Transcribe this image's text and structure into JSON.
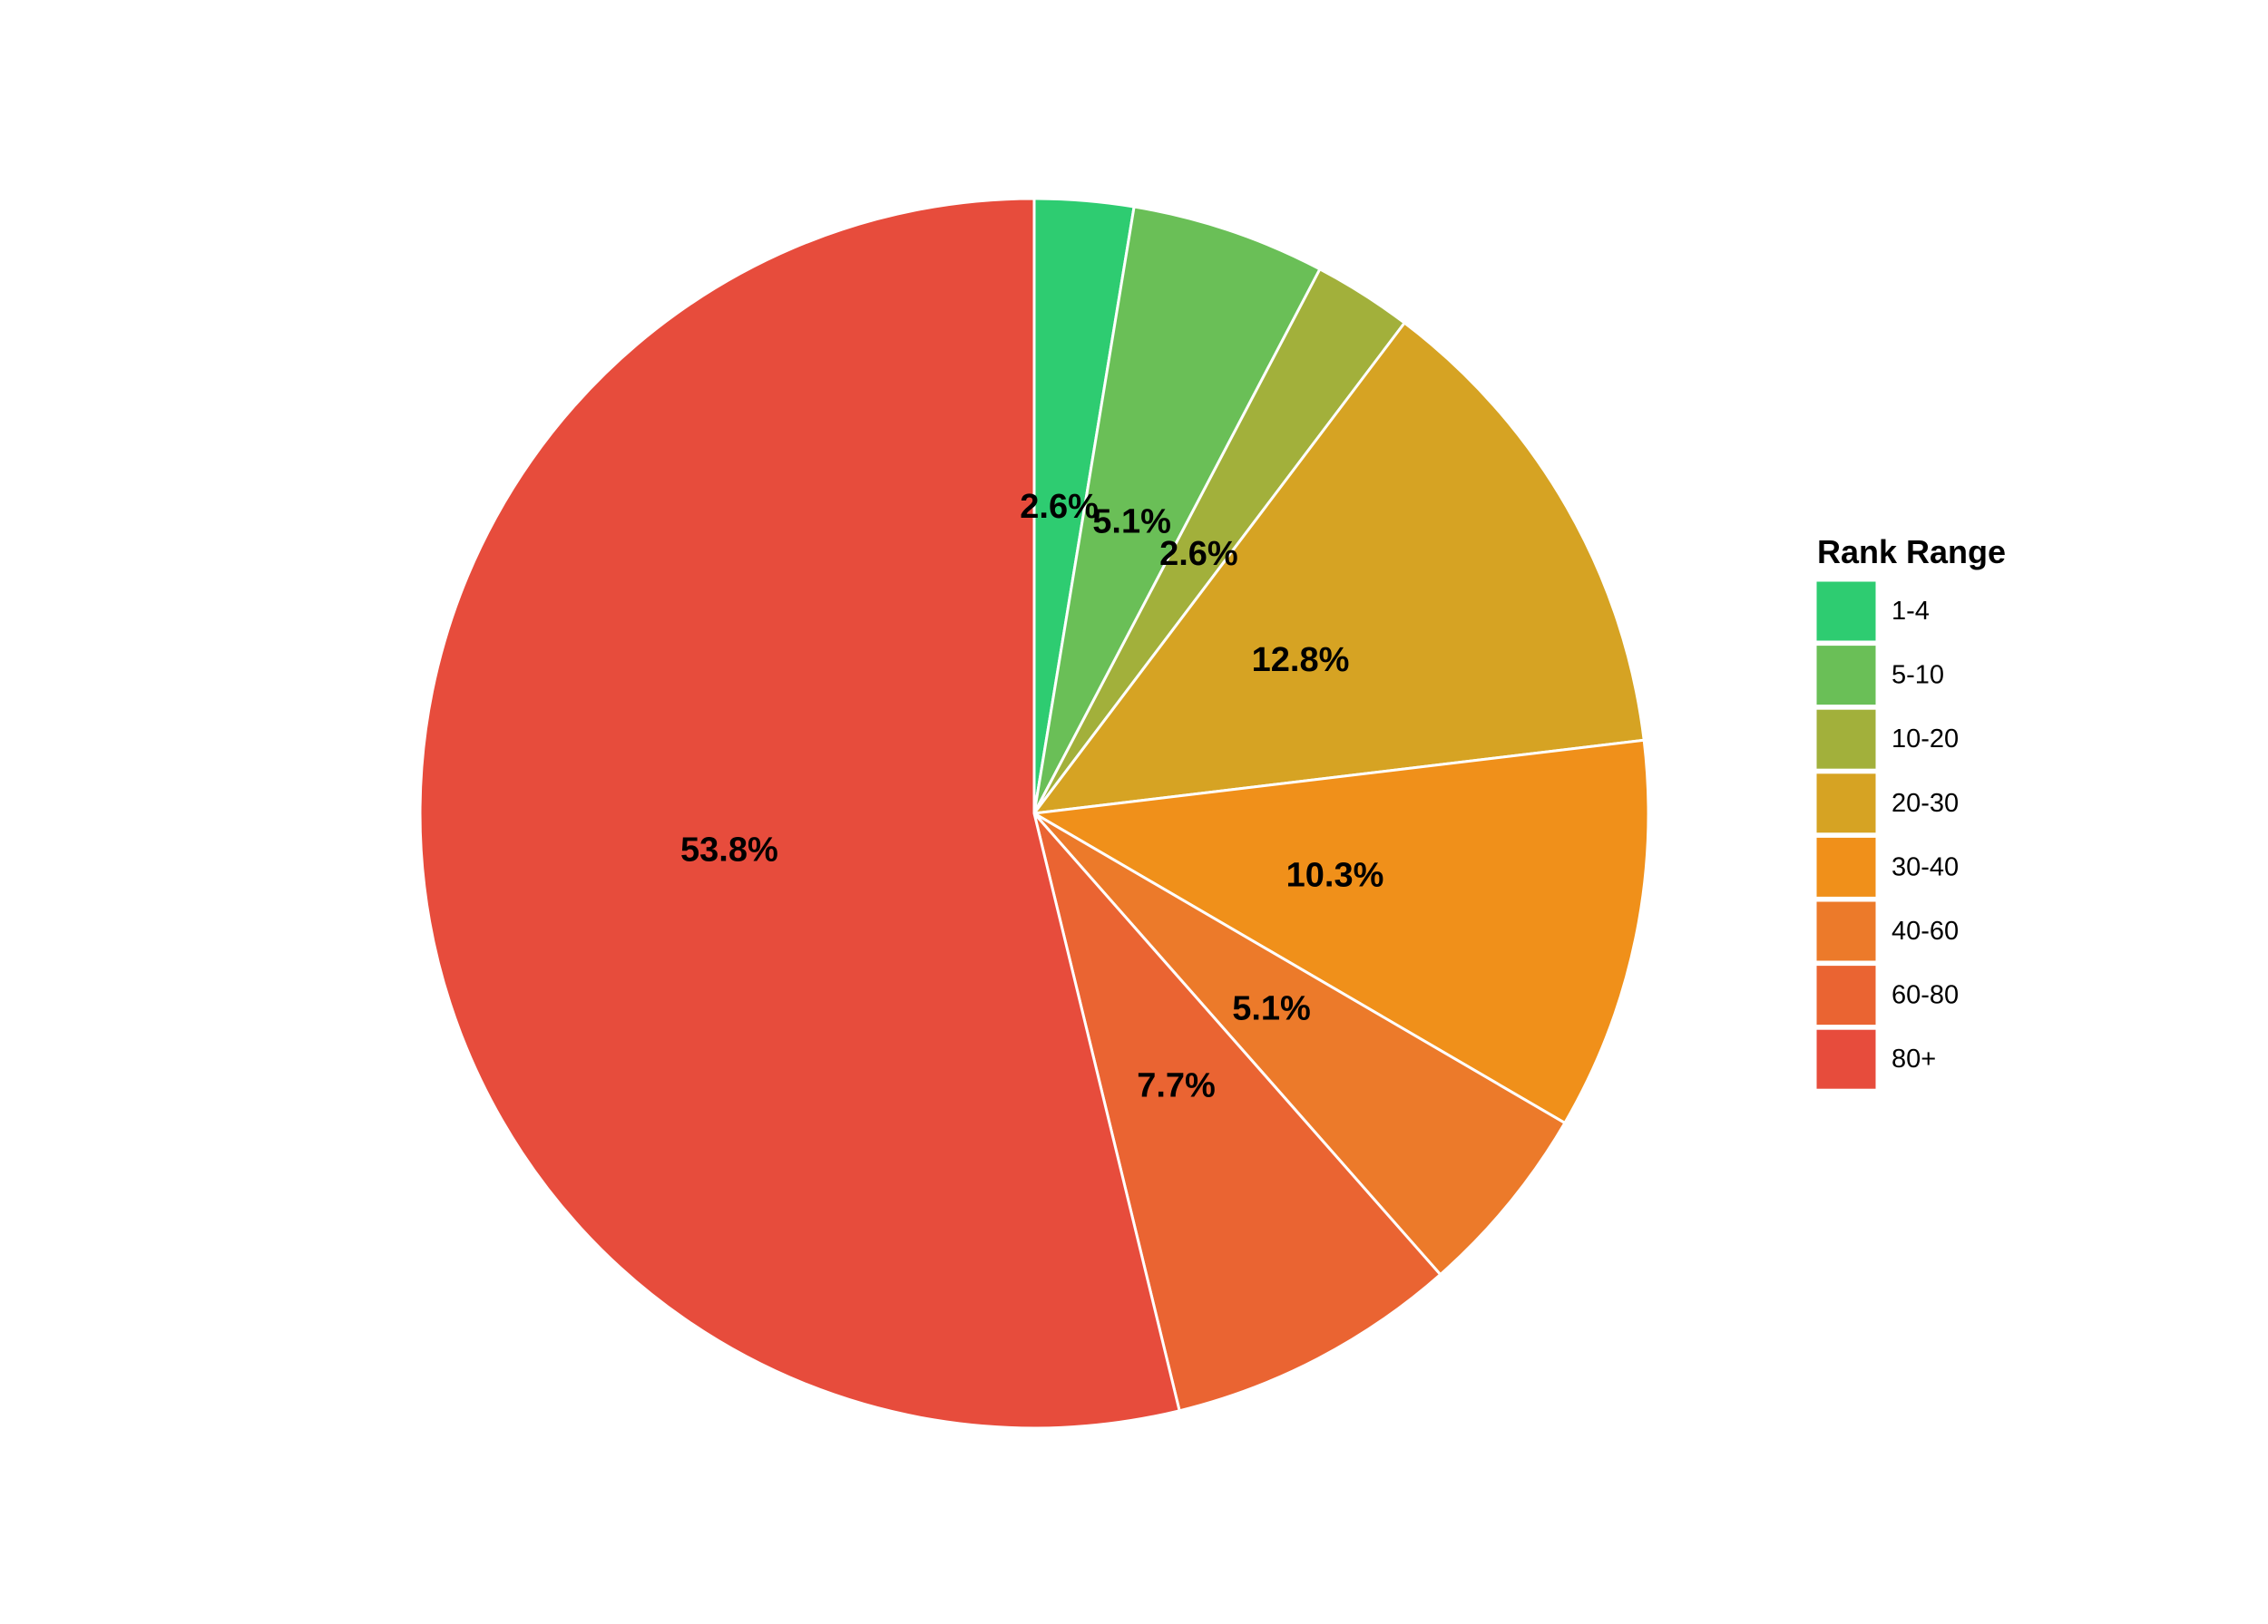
{
  "chart_data": {
    "type": "pie",
    "legend_title": "Rank Range",
    "legend_position": "right",
    "direction": "clockwise",
    "start": "top",
    "slices": [
      {
        "category": "1-4",
        "value": 2.6,
        "label": "2.6%",
        "color": "#2ecc71"
      },
      {
        "category": "5-10",
        "value": 5.1,
        "label": "5.1%",
        "color": "#6abf57"
      },
      {
        "category": "10-20",
        "value": 2.6,
        "label": "2.6%",
        "color": "#a2b03b"
      },
      {
        "category": "20-30",
        "value": 12.8,
        "label": "12.8%",
        "color": "#d6a323"
      },
      {
        "category": "30-40",
        "value": 10.3,
        "label": "10.3%",
        "color": "#f0901a"
      },
      {
        "category": "40-60",
        "value": 5.1,
        "label": "5.1%",
        "color": "#ec7a2a"
      },
      {
        "category": "60-80",
        "value": 7.7,
        "label": "7.7%",
        "color": "#ea6432"
      },
      {
        "category": "80+",
        "value": 53.8,
        "label": "53.8%",
        "color": "#e74c3c"
      }
    ]
  }
}
